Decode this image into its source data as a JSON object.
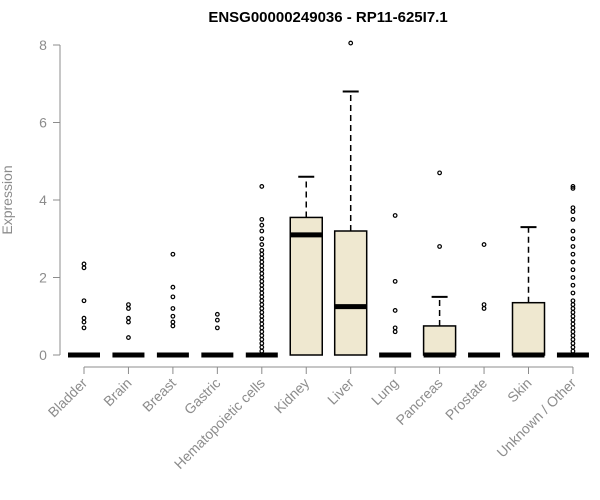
{
  "chart_data": {
    "type": "boxplot",
    "title": "ENSG00000249036 - RP11-625I7.1",
    "xlabel": "",
    "ylabel": "Expression",
    "ylim": [
      0,
      8
    ],
    "yticks": [
      0,
      2,
      4,
      6,
      8
    ],
    "grid": false,
    "categories": [
      "Bladder",
      "Brain",
      "Breast",
      "Gastric",
      "Hematopoietic cells",
      "Kidney",
      "Liver",
      "Lung",
      "Pancreas",
      "Prostate",
      "Skin",
      "Unknown / Other"
    ],
    "boxes": [
      {
        "q1": 0,
        "median": 0,
        "q3": 0,
        "whisker_low": 0,
        "whisker_high": 0,
        "outliers": [
          0.7,
          0.85,
          0.95,
          1.4,
          2.25,
          2.35
        ]
      },
      {
        "q1": 0,
        "median": 0,
        "q3": 0,
        "whisker_low": 0,
        "whisker_high": 0,
        "outliers": [
          0.45,
          0.85,
          0.95,
          1.2,
          1.3
        ]
      },
      {
        "q1": 0,
        "median": 0,
        "q3": 0,
        "whisker_low": 0,
        "whisker_high": 0,
        "outliers": [
          0.75,
          0.85,
          1.0,
          1.2,
          1.5,
          1.75,
          2.6
        ]
      },
      {
        "q1": 0,
        "median": 0,
        "q3": 0,
        "whisker_low": 0,
        "whisker_high": 0,
        "outliers": [
          0.7,
          0.9,
          1.05
        ]
      },
      {
        "q1": 0,
        "median": 0,
        "q3": 0,
        "whisker_low": 0,
        "whisker_high": 0,
        "outliers": [
          0.1,
          0.2,
          0.3,
          0.4,
          0.5,
          0.6,
          0.7,
          0.8,
          0.9,
          1.0,
          1.1,
          1.2,
          1.3,
          1.4,
          1.5,
          1.6,
          1.7,
          1.8,
          1.9,
          2.0,
          2.1,
          2.2,
          2.3,
          2.4,
          2.5,
          2.6,
          2.7,
          2.85,
          3.0,
          3.2,
          3.35,
          3.5,
          4.35
        ]
      },
      {
        "q1": 0,
        "median": 3.1,
        "q3": 3.55,
        "whisker_low": 0,
        "whisker_high": 4.6,
        "outliers": []
      },
      {
        "q1": 0,
        "median": 1.25,
        "q3": 3.2,
        "whisker_low": 0,
        "whisker_high": 6.8,
        "outliers": [
          8.05
        ]
      },
      {
        "q1": 0,
        "median": 0,
        "q3": 0,
        "whisker_low": 0,
        "whisker_high": 0,
        "outliers": [
          0.6,
          0.7,
          1.15,
          1.9,
          3.6
        ]
      },
      {
        "q1": 0,
        "median": 0,
        "q3": 0.75,
        "whisker_low": 0,
        "whisker_high": 1.5,
        "outliers": [
          2.8,
          4.7
        ]
      },
      {
        "q1": 0,
        "median": 0,
        "q3": 0,
        "whisker_low": 0,
        "whisker_high": 0,
        "outliers": [
          1.2,
          1.3,
          2.85
        ]
      },
      {
        "q1": 0,
        "median": 0,
        "q3": 1.35,
        "whisker_low": 0,
        "whisker_high": 3.3,
        "outliers": []
      },
      {
        "q1": 0,
        "median": 0,
        "q3": 0,
        "whisker_low": 0,
        "whisker_high": 0,
        "outliers": [
          0.1,
          0.2,
          0.3,
          0.4,
          0.5,
          0.6,
          0.7,
          0.8,
          0.9,
          1.0,
          1.1,
          1.2,
          1.3,
          1.4,
          1.6,
          1.8,
          2.0,
          2.2,
          2.4,
          2.6,
          2.8,
          3.0,
          3.2,
          3.5,
          3.7,
          3.8,
          4.3,
          4.35
        ]
      }
    ]
  }
}
